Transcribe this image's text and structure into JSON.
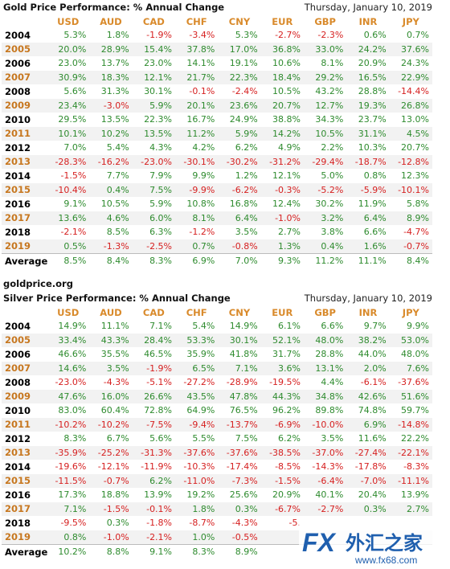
{
  "columns": [
    "USD",
    "AUD",
    "CAD",
    "CHF",
    "CNY",
    "EUR",
    "GBP",
    "INR",
    "JPY"
  ],
  "gold": {
    "title": "Gold Price Performance: % Annual Change",
    "date": "Thursday, January 10, 2019",
    "rows": [
      {
        "year": "2004",
        "values": [
          "5.3%",
          "1.8%",
          "-1.9%",
          "-3.4%",
          "5.3%",
          "-2.7%",
          "-2.3%",
          "0.6%",
          "0.7%"
        ]
      },
      {
        "year": "2005",
        "values": [
          "20.0%",
          "28.9%",
          "15.4%",
          "37.8%",
          "17.0%",
          "36.8%",
          "33.0%",
          "24.2%",
          "37.6%"
        ]
      },
      {
        "year": "2006",
        "values": [
          "23.0%",
          "13.7%",
          "23.0%",
          "14.1%",
          "19.1%",
          "10.6%",
          "8.1%",
          "20.9%",
          "24.3%"
        ]
      },
      {
        "year": "2007",
        "values": [
          "30.9%",
          "18.3%",
          "12.1%",
          "21.7%",
          "22.3%",
          "18.4%",
          "29.2%",
          "16.5%",
          "22.9%"
        ]
      },
      {
        "year": "2008",
        "values": [
          "5.6%",
          "31.3%",
          "30.1%",
          "-0.1%",
          "-2.4%",
          "10.5%",
          "43.2%",
          "28.8%",
          "-14.4%"
        ]
      },
      {
        "year": "2009",
        "values": [
          "23.4%",
          "-3.0%",
          "5.9%",
          "20.1%",
          "23.6%",
          "20.7%",
          "12.7%",
          "19.3%",
          "26.8%"
        ]
      },
      {
        "year": "2010",
        "values": [
          "29.5%",
          "13.5%",
          "22.3%",
          "16.7%",
          "24.9%",
          "38.8%",
          "34.3%",
          "23.7%",
          "13.0%"
        ]
      },
      {
        "year": "2011",
        "values": [
          "10.1%",
          "10.2%",
          "13.5%",
          "11.2%",
          "5.9%",
          "14.2%",
          "10.5%",
          "31.1%",
          "4.5%"
        ]
      },
      {
        "year": "2012",
        "values": [
          "7.0%",
          "5.4%",
          "4.3%",
          "4.2%",
          "6.2%",
          "4.9%",
          "2.2%",
          "10.3%",
          "20.7%"
        ]
      },
      {
        "year": "2013",
        "values": [
          "-28.3%",
          "-16.2%",
          "-23.0%",
          "-30.1%",
          "-30.2%",
          "-31.2%",
          "-29.4%",
          "-18.7%",
          "-12.8%"
        ]
      },
      {
        "year": "2014",
        "values": [
          "-1.5%",
          "7.7%",
          "7.9%",
          "9.9%",
          "1.2%",
          "12.1%",
          "5.0%",
          "0.8%",
          "12.3%"
        ]
      },
      {
        "year": "2015",
        "values": [
          "-10.4%",
          "0.4%",
          "7.5%",
          "-9.9%",
          "-6.2%",
          "-0.3%",
          "-5.2%",
          "-5.9%",
          "-10.1%"
        ]
      },
      {
        "year": "2016",
        "values": [
          "9.1%",
          "10.5%",
          "5.9%",
          "10.8%",
          "16.8%",
          "12.4%",
          "30.2%",
          "11.9%",
          "5.8%"
        ]
      },
      {
        "year": "2017",
        "values": [
          "13.6%",
          "4.6%",
          "6.0%",
          "8.1%",
          "6.4%",
          "-1.0%",
          "3.2%",
          "6.4%",
          "8.9%"
        ]
      },
      {
        "year": "2018",
        "values": [
          "-2.1%",
          "8.5%",
          "6.3%",
          "-1.2%",
          "3.5%",
          "2.7%",
          "3.8%",
          "6.6%",
          "-4.7%"
        ]
      },
      {
        "year": "2019",
        "values": [
          "0.5%",
          "-1.3%",
          "-2.5%",
          "0.7%",
          "-0.8%",
          "1.3%",
          "0.4%",
          "1.6%",
          "-0.7%"
        ]
      }
    ],
    "average": {
      "label": "Average",
      "values": [
        "8.5%",
        "8.4%",
        "8.3%",
        "6.9%",
        "7.0%",
        "9.3%",
        "11.2%",
        "11.1%",
        "8.4%"
      ]
    }
  },
  "site_label": "goldprice.org",
  "silver": {
    "title": "Silver Price Performance: % Annual Change",
    "date": "Thursday, January 10, 2019",
    "rows": [
      {
        "year": "2004",
        "values": [
          "14.9%",
          "11.1%",
          "7.1%",
          "5.4%",
          "14.9%",
          "6.1%",
          "6.6%",
          "9.7%",
          "9.9%"
        ]
      },
      {
        "year": "2005",
        "values": [
          "33.4%",
          "43.3%",
          "28.4%",
          "53.3%",
          "30.1%",
          "52.1%",
          "48.0%",
          "38.2%",
          "53.0%"
        ]
      },
      {
        "year": "2006",
        "values": [
          "46.6%",
          "35.5%",
          "46.5%",
          "35.9%",
          "41.8%",
          "31.7%",
          "28.8%",
          "44.0%",
          "48.0%"
        ]
      },
      {
        "year": "2007",
        "values": [
          "14.6%",
          "3.5%",
          "-1.9%",
          "6.5%",
          "7.1%",
          "3.6%",
          "13.1%",
          "2.0%",
          "7.6%"
        ]
      },
      {
        "year": "2008",
        "values": [
          "-23.0%",
          "-4.3%",
          "-5.1%",
          "-27.2%",
          "-28.9%",
          "-19.5%",
          "4.4%",
          "-6.1%",
          "-37.6%"
        ]
      },
      {
        "year": "2009",
        "values": [
          "47.6%",
          "16.0%",
          "26.6%",
          "43.5%",
          "47.8%",
          "44.3%",
          "34.8%",
          "42.6%",
          "51.6%"
        ]
      },
      {
        "year": "2010",
        "values": [
          "83.0%",
          "60.4%",
          "72.8%",
          "64.9%",
          "76.5%",
          "96.2%",
          "89.8%",
          "74.8%",
          "59.7%"
        ]
      },
      {
        "year": "2011",
        "values": [
          "-10.2%",
          "-10.2%",
          "-7.5%",
          "-9.4%",
          "-13.7%",
          "-6.9%",
          "-10.0%",
          "6.9%",
          "-14.8%"
        ]
      },
      {
        "year": "2012",
        "values": [
          "8.3%",
          "6.7%",
          "5.6%",
          "5.5%",
          "7.5%",
          "6.2%",
          "3.5%",
          "11.6%",
          "22.2%"
        ]
      },
      {
        "year": "2013",
        "values": [
          "-35.9%",
          "-25.2%",
          "-31.3%",
          "-37.6%",
          "-37.6%",
          "-38.5%",
          "-37.0%",
          "-27.4%",
          "-22.1%"
        ]
      },
      {
        "year": "2014",
        "values": [
          "-19.6%",
          "-12.1%",
          "-11.9%",
          "-10.3%",
          "-17.4%",
          "-8.5%",
          "-14.3%",
          "-17.8%",
          "-8.3%"
        ]
      },
      {
        "year": "2015",
        "values": [
          "-11.5%",
          "-0.7%",
          "6.2%",
          "-11.0%",
          "-7.3%",
          "-1.5%",
          "-6.4%",
          "-7.0%",
          "-11.1%"
        ]
      },
      {
        "year": "2016",
        "values": [
          "17.3%",
          "18.8%",
          "13.9%",
          "19.2%",
          "25.6%",
          "20.9%",
          "40.1%",
          "20.4%",
          "13.9%"
        ]
      },
      {
        "year": "2017",
        "values": [
          "7.1%",
          "-1.5%",
          "-0.1%",
          "1.8%",
          "0.3%",
          "-6.7%",
          "-2.7%",
          "0.3%",
          "2.7%"
        ]
      },
      {
        "year": "2018",
        "values": [
          "-9.5%",
          "0.3%",
          "-1.8%",
          "-8.7%",
          "-4.3%",
          "-5.",
          "",
          "",
          ""
        ]
      },
      {
        "year": "2019",
        "values": [
          "0.8%",
          "-1.0%",
          "-2.1%",
          "1.0%",
          "-0.5%",
          "",
          "",
          "",
          ""
        ]
      }
    ],
    "average": {
      "label": "Average",
      "values": [
        "10.2%",
        "8.8%",
        "9.1%",
        "8.3%",
        "8.9%",
        "",
        "",
        "",
        ""
      ]
    }
  },
  "watermark": {
    "brand": "FX",
    "chinese": "外汇之家",
    "url": "www.fx68.com"
  },
  "colors": {
    "header": "#d98a2b",
    "positive": "#2e8b2e",
    "negative": "#d62020",
    "year_alt": "#c7771f"
  }
}
